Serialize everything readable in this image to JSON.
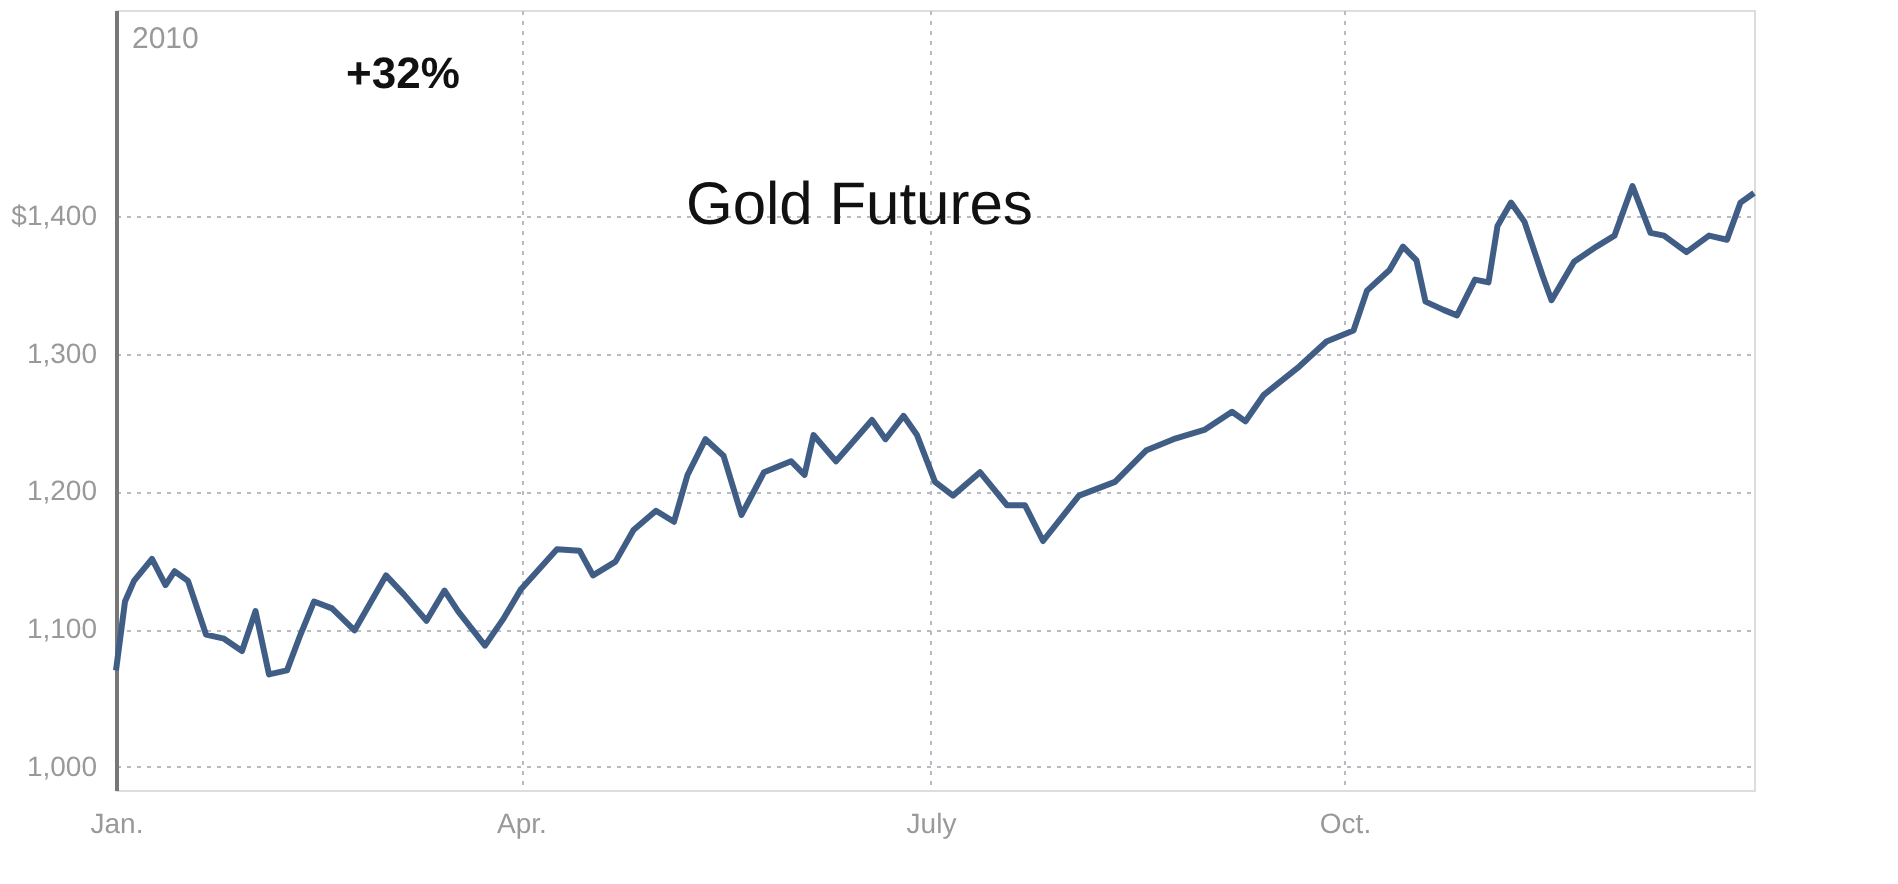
{
  "chart_data": {
    "type": "line",
    "annotations": [
      "2010",
      "+32%",
      "Gold Futures"
    ],
    "x": [
      "2010-01-01",
      "2010-01-03",
      "2010-01-05",
      "2010-01-09",
      "2010-01-12",
      "2010-01-14",
      "2010-01-17",
      "2010-01-21",
      "2010-01-25",
      "2010-01-29",
      "2010-02-01",
      "2010-02-04",
      "2010-02-08",
      "2010-02-11",
      "2010-02-14",
      "2010-02-18",
      "2010-02-23",
      "2010-03-02",
      "2010-03-06",
      "2010-03-11",
      "2010-03-15",
      "2010-03-18",
      "2010-03-24",
      "2010-03-28",
      "2010-04-01",
      "2010-04-09",
      "2010-04-14",
      "2010-04-17",
      "2010-04-22",
      "2010-04-26",
      "2010-05-01",
      "2010-05-05",
      "2010-05-08",
      "2010-05-12",
      "2010-05-16",
      "2010-05-20",
      "2010-05-25",
      "2010-05-31",
      "2010-06-03",
      "2010-06-05",
      "2010-06-10",
      "2010-06-18",
      "2010-06-21",
      "2010-06-25",
      "2010-06-28",
      "2010-07-02",
      "2010-07-06",
      "2010-07-12",
      "2010-07-18",
      "2010-07-22",
      "2010-07-26",
      "2010-08-03",
      "2010-08-11",
      "2010-08-18",
      "2010-08-24",
      "2010-08-31",
      "2010-09-06",
      "2010-09-09",
      "2010-09-13",
      "2010-09-21",
      "2010-09-27",
      "2010-10-03",
      "2010-10-06",
      "2010-10-11",
      "2010-10-14",
      "2010-10-17",
      "2010-10-19",
      "2010-10-23",
      "2010-10-26",
      "2010-10-30",
      "2010-11-02",
      "2010-11-04",
      "2010-11-07",
      "2010-11-10",
      "2010-11-14",
      "2010-11-16",
      "2010-11-21",
      "2010-11-26",
      "2010-11-30",
      "2010-12-04",
      "2010-12-08",
      "2010-12-11",
      "2010-12-16",
      "2010-12-21",
      "2010-12-25",
      "2010-12-28",
      "2010-12-31"
    ],
    "series": [
      {
        "color": "#3f5d85",
        "values": [
          1070,
          1120,
          1135,
          1151,
          1132,
          1142,
          1135,
          1096,
          1093,
          1084,
          1113,
          1067,
          1070,
          1096,
          1120,
          1115,
          1099,
          1139,
          1125,
          1106,
          1128,
          1113,
          1088,
          1107,
          1129,
          1158,
          1157,
          1139,
          1149,
          1172,
          1186,
          1178,
          1212,
          1238,
          1226,
          1183,
          1214,
          1222,
          1212,
          1241,
          1222,
          1252,
          1238,
          1255,
          1241,
          1207,
          1197,
          1214,
          1190,
          1190,
          1164,
          1197,
          1207,
          1230,
          1238,
          1245,
          1258,
          1251,
          1270,
          1291,
          1309,
          1317,
          1346,
          1361,
          1378,
          1368,
          1338,
          1332,
          1328,
          1354,
          1352,
          1393,
          1410,
          1396,
          1357,
          1339,
          1367,
          1378,
          1386,
          1422,
          1388,
          1386,
          1374,
          1386,
          1383,
          1410,
          1417
        ]
      }
    ],
    "xlim": [
      "2010-01-01",
      "2010-12-31"
    ],
    "xticks": [
      {
        "value": "2010-01-01",
        "label": "Jan."
      },
      {
        "value": "2010-04-01",
        "label": "Apr."
      },
      {
        "value": "2010-07-01",
        "label": "July"
      },
      {
        "value": "2010-10-01",
        "label": "Oct."
      }
    ],
    "ylim": [
      983,
      1550
    ],
    "yticks": [
      {
        "value": 1000,
        "label": "1,000"
      },
      {
        "value": 1100,
        "label": "1,100"
      },
      {
        "value": 1200,
        "label": "1,200"
      },
      {
        "value": 1300,
        "label": "1,300"
      },
      {
        "value": 1400,
        "label": "$1,400"
      }
    ],
    "grid": true,
    "marker": "none",
    "line_style": "solid"
  }
}
